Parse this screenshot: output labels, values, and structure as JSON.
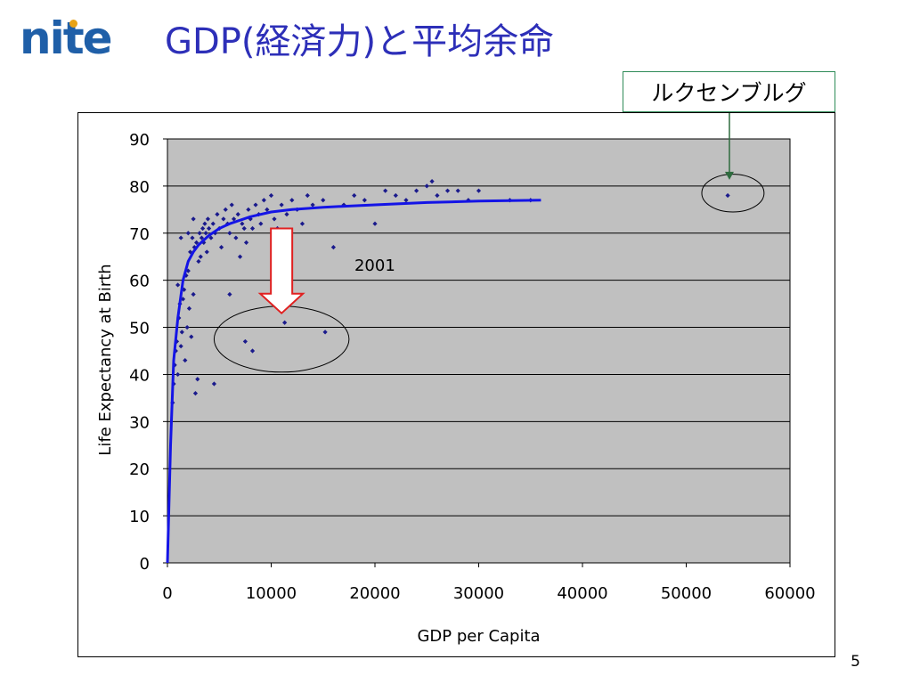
{
  "slide": {
    "logo_text": "nite",
    "title": "GDP(経済力)と平均余命",
    "callout": "ルクセンブルグ",
    "page_number": "5"
  },
  "colors": {
    "title": "#2d2fb8",
    "logo": "#1f5fa8",
    "plot_bg": "#c0c0c0",
    "points": "#1a1a8c",
    "trend": "#1414e6",
    "arrow_down": "#e02020",
    "callout_arrow": "#2e6b3e"
  },
  "chart_data": {
    "type": "scatter",
    "title": "",
    "annotation": "2001",
    "xlabel": "GDP per Capita",
    "ylabel": "Life Expectancy at Birth",
    "xlim": [
      0,
      60000
    ],
    "ylim": [
      0,
      90
    ],
    "xticks": [
      "0",
      "10000",
      "20000",
      "30000",
      "40000",
      "50000",
      "60000"
    ],
    "yticks": [
      "0",
      "10",
      "20",
      "30",
      "40",
      "50",
      "60",
      "70",
      "80",
      "90"
    ],
    "grid": "horizontal",
    "series": [
      {
        "points": [
          [
            500,
            34
          ],
          [
            600,
            38
          ],
          [
            700,
            42
          ],
          [
            800,
            45
          ],
          [
            900,
            47
          ],
          [
            1000,
            40
          ],
          [
            1100,
            52
          ],
          [
            1200,
            55
          ],
          [
            1300,
            46
          ],
          [
            1400,
            49
          ],
          [
            1500,
            56
          ],
          [
            1600,
            58
          ],
          [
            1700,
            43
          ],
          [
            1800,
            61
          ],
          [
            1900,
            50
          ],
          [
            2000,
            62
          ],
          [
            2100,
            54
          ],
          [
            2200,
            66
          ],
          [
            2300,
            48
          ],
          [
            2400,
            69
          ],
          [
            2500,
            57
          ],
          [
            2600,
            67
          ],
          [
            2700,
            36
          ],
          [
            2800,
            68
          ],
          [
            2900,
            39
          ],
          [
            3000,
            64
          ],
          [
            3100,
            70
          ],
          [
            3200,
            65
          ],
          [
            3300,
            69
          ],
          [
            3400,
            71
          ],
          [
            3500,
            68
          ],
          [
            3600,
            72
          ],
          [
            3700,
            70
          ],
          [
            3800,
            66
          ],
          [
            3900,
            73
          ],
          [
            4000,
            71
          ],
          [
            4200,
            69
          ],
          [
            4400,
            72
          ],
          [
            4500,
            38
          ],
          [
            4600,
            70
          ],
          [
            4800,
            74
          ],
          [
            5000,
            71
          ],
          [
            5200,
            67
          ],
          [
            5400,
            73
          ],
          [
            5600,
            75
          ],
          [
            5800,
            72
          ],
          [
            6000,
            70
          ],
          [
            6200,
            76
          ],
          [
            6400,
            73
          ],
          [
            6600,
            69
          ],
          [
            6800,
            74
          ],
          [
            7000,
            65
          ],
          [
            7200,
            72
          ],
          [
            7400,
            71
          ],
          [
            7600,
            68
          ],
          [
            7800,
            75
          ],
          [
            8000,
            73
          ],
          [
            8200,
            71
          ],
          [
            8500,
            76
          ],
          [
            8800,
            74
          ],
          [
            9000,
            72
          ],
          [
            9300,
            77
          ],
          [
            9600,
            75
          ],
          [
            10000,
            78
          ],
          [
            10300,
            73
          ],
          [
            10600,
            71
          ],
          [
            11000,
            76
          ],
          [
            11500,
            74
          ],
          [
            12000,
            77
          ],
          [
            12500,
            75
          ],
          [
            13000,
            72
          ],
          [
            13500,
            78
          ],
          [
            14000,
            76
          ],
          [
            15000,
            77
          ],
          [
            16000,
            67
          ],
          [
            17000,
            76
          ],
          [
            18000,
            78
          ],
          [
            19000,
            77
          ],
          [
            20000,
            72
          ],
          [
            21000,
            79
          ],
          [
            22000,
            78
          ],
          [
            23000,
            77
          ],
          [
            24000,
            79
          ],
          [
            25000,
            80
          ],
          [
            25500,
            81
          ],
          [
            26000,
            78
          ],
          [
            27000,
            79
          ],
          [
            28000,
            79
          ],
          [
            29000,
            77
          ],
          [
            30000,
            79
          ],
          [
            33000,
            77
          ],
          [
            35000,
            77
          ],
          [
            1000,
            59
          ],
          [
            1300,
            69
          ],
          [
            2000,
            70
          ],
          [
            2500,
            73
          ],
          [
            6000,
            57
          ],
          [
            7500,
            47
          ],
          [
            8200,
            45
          ],
          [
            11300,
            51
          ],
          [
            15200,
            49
          ],
          [
            54000,
            78
          ]
        ]
      }
    ],
    "trend_line": {
      "type": "logarithmic-saturating",
      "x": [
        0,
        300,
        600,
        1000,
        1500,
        2000,
        2500,
        3000,
        4000,
        5000,
        6000,
        8000,
        10000,
        12000,
        15000,
        20000,
        25000,
        30000,
        36000
      ],
      "y": [
        0,
        25,
        43,
        52,
        60,
        64,
        66,
        67.5,
        69.5,
        71,
        72,
        73.5,
        74.5,
        75,
        75.5,
        76,
        76.5,
        76.8,
        77
      ]
    },
    "down_arrow": {
      "x": 11000,
      "y_from": 71,
      "y_to": 53
    },
    "ellipses": [
      {
        "cx": 11000,
        "cy": 47.5,
        "rx": 6500,
        "ry": 7
      },
      {
        "cx": 54500,
        "cy": 78.5,
        "rx": 3000,
        "ry": 4
      }
    ]
  }
}
